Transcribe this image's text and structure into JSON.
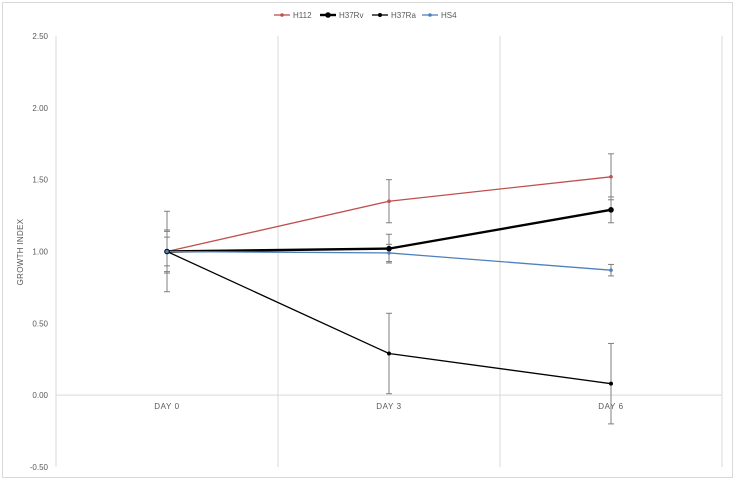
{
  "chart_data": {
    "type": "line",
    "title": "",
    "xlabel": "",
    "ylabel": "GROWTH INDEX",
    "categories": [
      "DAY 0",
      "DAY 3",
      "DAY 6"
    ],
    "yticks": [
      "2.50",
      "2.00",
      "1.50",
      "1.00",
      "0.50",
      "0.00",
      "-0.50"
    ],
    "ylim": [
      -0.5,
      2.5
    ],
    "grid": "vertical",
    "legend_position": "top",
    "series": [
      {
        "name": "H112",
        "values": [
          1.0,
          1.35,
          1.52
        ],
        "errors": [
          0.15,
          0.15,
          0.16
        ],
        "color": "#c0504d"
      },
      {
        "name": "H37Rv",
        "values": [
          1.0,
          1.02,
          1.29
        ],
        "errors": [
          0.14,
          0.1,
          0.09
        ],
        "color": "#000000"
      },
      {
        "name": "H37Ra",
        "values": [
          1.0,
          0.29,
          0.08
        ],
        "errors": [
          0.28,
          0.28,
          0.28
        ],
        "color": "#000000"
      },
      {
        "name": "HS4",
        "values": [
          1.0,
          0.99,
          0.87
        ],
        "errors": [
          0.1,
          0.06,
          0.04
        ],
        "color": "#4f81bd"
      }
    ]
  }
}
